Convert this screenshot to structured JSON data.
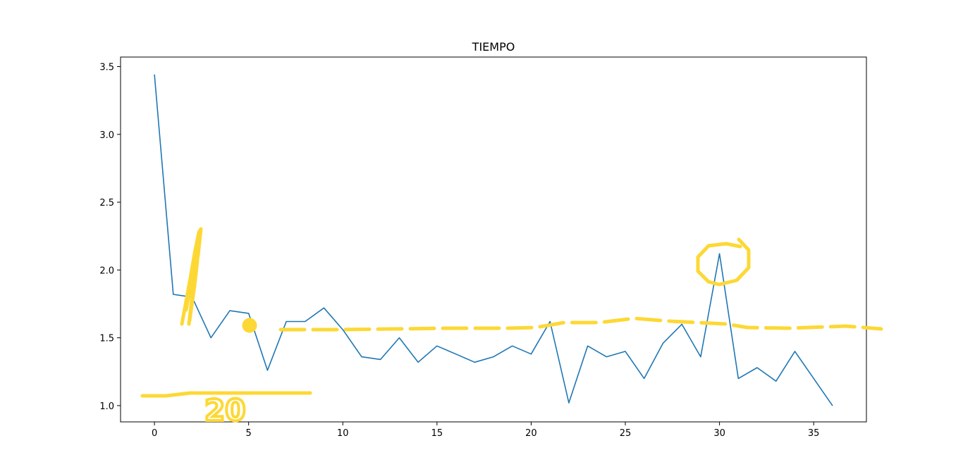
{
  "chart_data": {
    "type": "line",
    "title": "TIEMPO",
    "xlabel": "",
    "ylabel": "",
    "xlim": [
      -1.8,
      37.8
    ],
    "ylim": [
      0.88,
      3.57
    ],
    "xticks": [
      0,
      5,
      10,
      15,
      20,
      25,
      30,
      35
    ],
    "yticks": [
      1.0,
      1.5,
      2.0,
      2.5,
      3.0,
      3.5
    ],
    "xtick_labels": [
      "0",
      "5",
      "10",
      "15",
      "20",
      "25",
      "30",
      "35"
    ],
    "ytick_labels": [
      "1.0",
      "1.5",
      "2.0",
      "2.5",
      "3.0",
      "3.5"
    ],
    "grid": false,
    "series": [
      {
        "color": "#1f77b4",
        "x": [
          0,
          1,
          2,
          3,
          4,
          5,
          6,
          7,
          8,
          9,
          10,
          11,
          12,
          13,
          14,
          15,
          16,
          17,
          18,
          19,
          20,
          21,
          22,
          23,
          24,
          25,
          26,
          27,
          28,
          29,
          30,
          31,
          32,
          33,
          34,
          35,
          36
        ],
        "y": [
          3.44,
          1.82,
          1.8,
          1.5,
          1.7,
          1.68,
          1.26,
          1.62,
          1.62,
          1.72,
          1.56,
          1.36,
          1.34,
          1.5,
          1.32,
          1.44,
          1.38,
          1.32,
          1.36,
          1.44,
          1.38,
          1.62,
          1.02,
          1.44,
          1.36,
          1.4,
          1.2,
          1.46,
          1.6,
          1.36,
          2.12,
          1.2,
          1.28,
          1.18,
          1.4,
          1.2,
          1.0
        ]
      }
    ],
    "annotations": [
      {
        "kind": "handwritten-text",
        "text": "20",
        "color": "#fdd835"
      }
    ]
  }
}
